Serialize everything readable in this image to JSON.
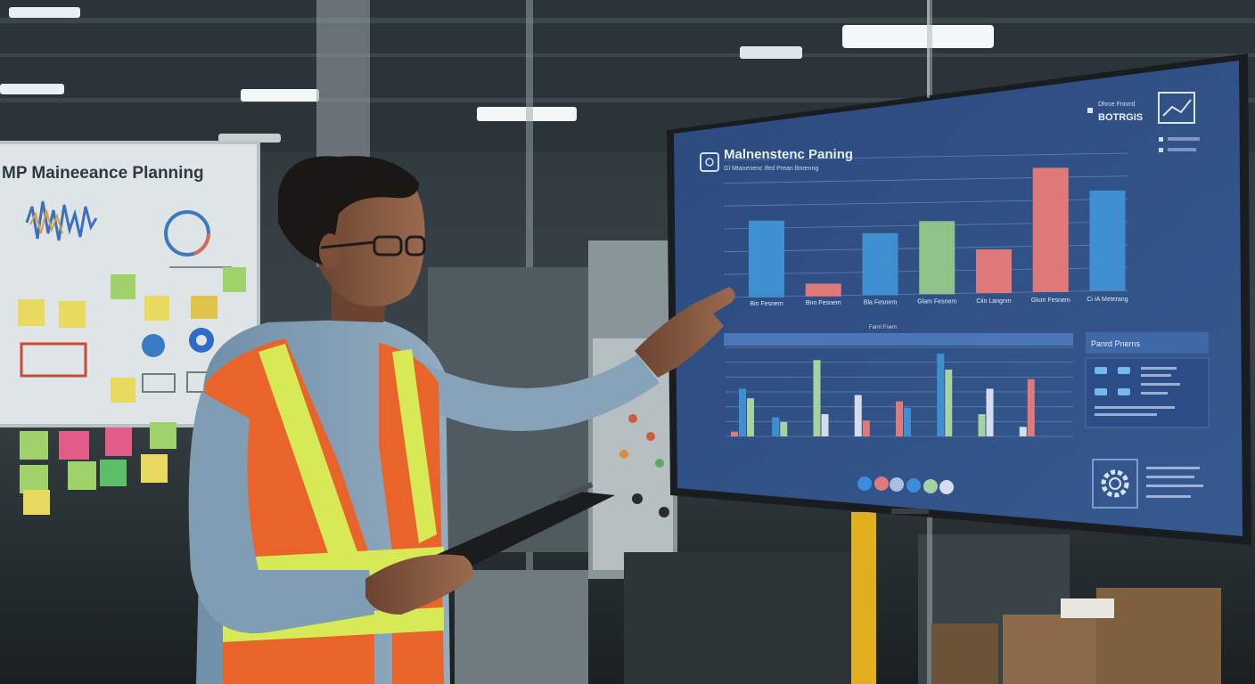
{
  "whiteboard": {
    "title": "MP Maineeance Planning"
  },
  "monitor": {
    "title": "Malnenstenc Paning",
    "subtitle": "Gl Mtanenenc Ifed Prean Bnrenng",
    "top_right_label": "Dhrce Fnnrrd",
    "top_right_code": "BOTRGIS",
    "upper_chart": {
      "categories": [
        "Bin Fesnem",
        "Bnn Fesnem",
        "Bla Fesnem",
        "Glam Fesnem",
        "Ciin Langnm",
        "Glum Fesnem",
        "Ci IA Meterang"
      ]
    },
    "lower_chart": {
      "header": "Farnt Fnem"
    },
    "side_panel": {
      "title": "Panrd Pnerns"
    }
  },
  "chart_data": [
    {
      "type": "bar",
      "categories": [
        "Bin Fesnem",
        "Bnn Fesnem",
        "Bla Fesnem",
        "Glam Fesnem",
        "Ciin Langnm",
        "Glum Fesnem",
        "Ci IA Meterang"
      ],
      "values": [
        42,
        7,
        34,
        40,
        24,
        68,
        55
      ]
    },
    {
      "type": "bar",
      "values": [
        [
          3,
          30,
          24
        ],
        [
          12,
          9
        ],
        [
          48,
          14
        ],
        [
          26,
          10
        ],
        [
          22,
          18
        ],
        [
          52,
          42
        ],
        [
          14,
          30
        ],
        [
          6,
          36
        ]
      ]
    }
  ],
  "colors": {
    "screen": "#2f5187",
    "bar_blue": "#3f8fd0",
    "bar_green": "#8fc38a",
    "bar_red": "#e07a7a",
    "vest_orange": "#e8642a",
    "vest_reflective": "#d7ea56"
  }
}
